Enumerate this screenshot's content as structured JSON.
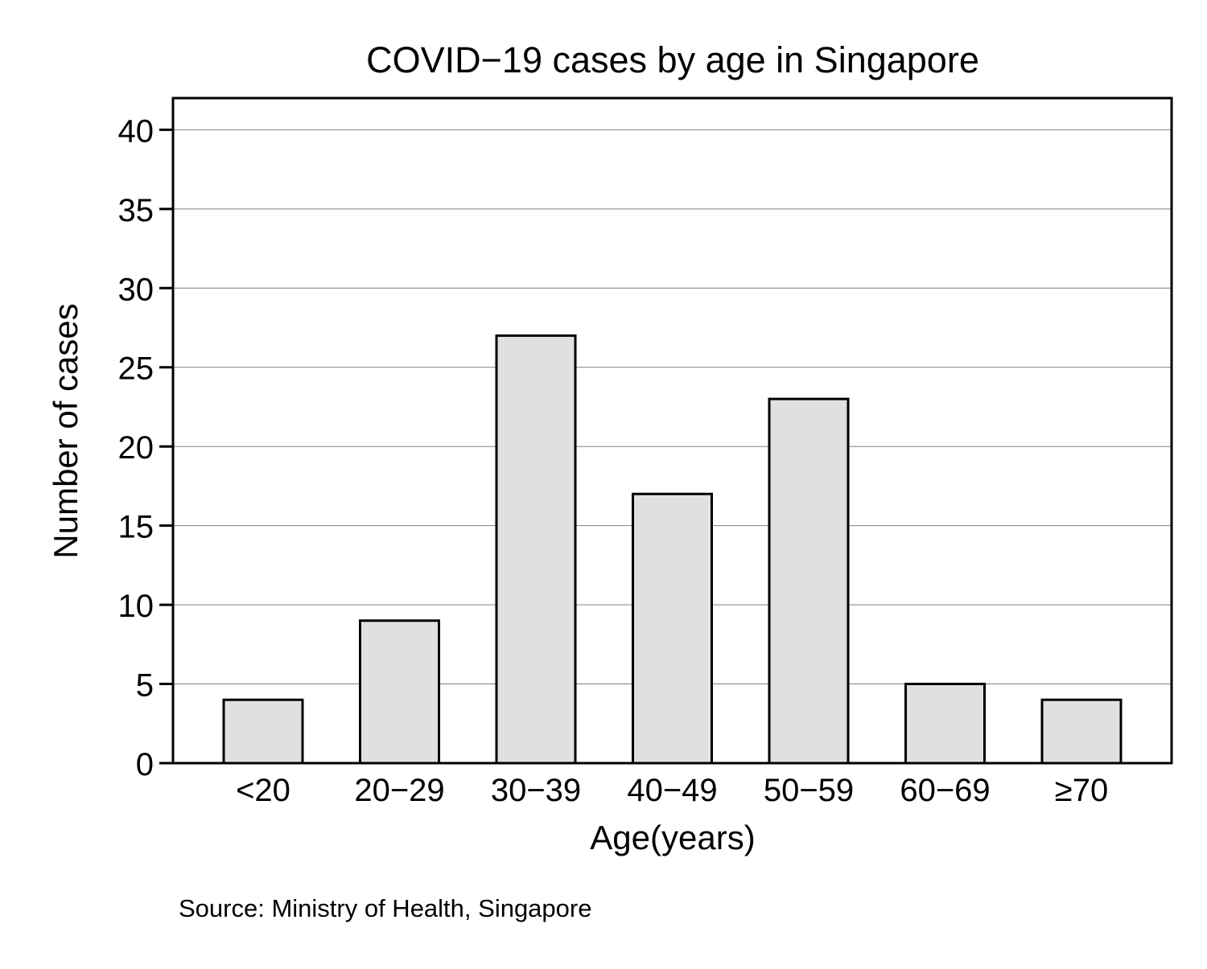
{
  "chart_data": {
    "type": "bar",
    "title": "COVID−19 cases by age in Singapore",
    "xlabel": "Age(years)",
    "ylabel": "Number of cases",
    "categories": [
      "<20",
      "20−29",
      "30−39",
      "40−49",
      "50−59",
      "60−69",
      "≥70"
    ],
    "values": [
      4,
      9,
      27,
      17,
      23,
      5,
      4
    ],
    "ylim": [
      0,
      42
    ],
    "yticks": [
      "0",
      "5",
      "10",
      "15",
      "20",
      "25",
      "30",
      "35",
      "40"
    ],
    "grid": true,
    "bar_color": "#e0e0e0",
    "edge_color": "#000000",
    "grid_color": "#808080"
  },
  "source_note": "Source: Ministry of Health, Singapore"
}
